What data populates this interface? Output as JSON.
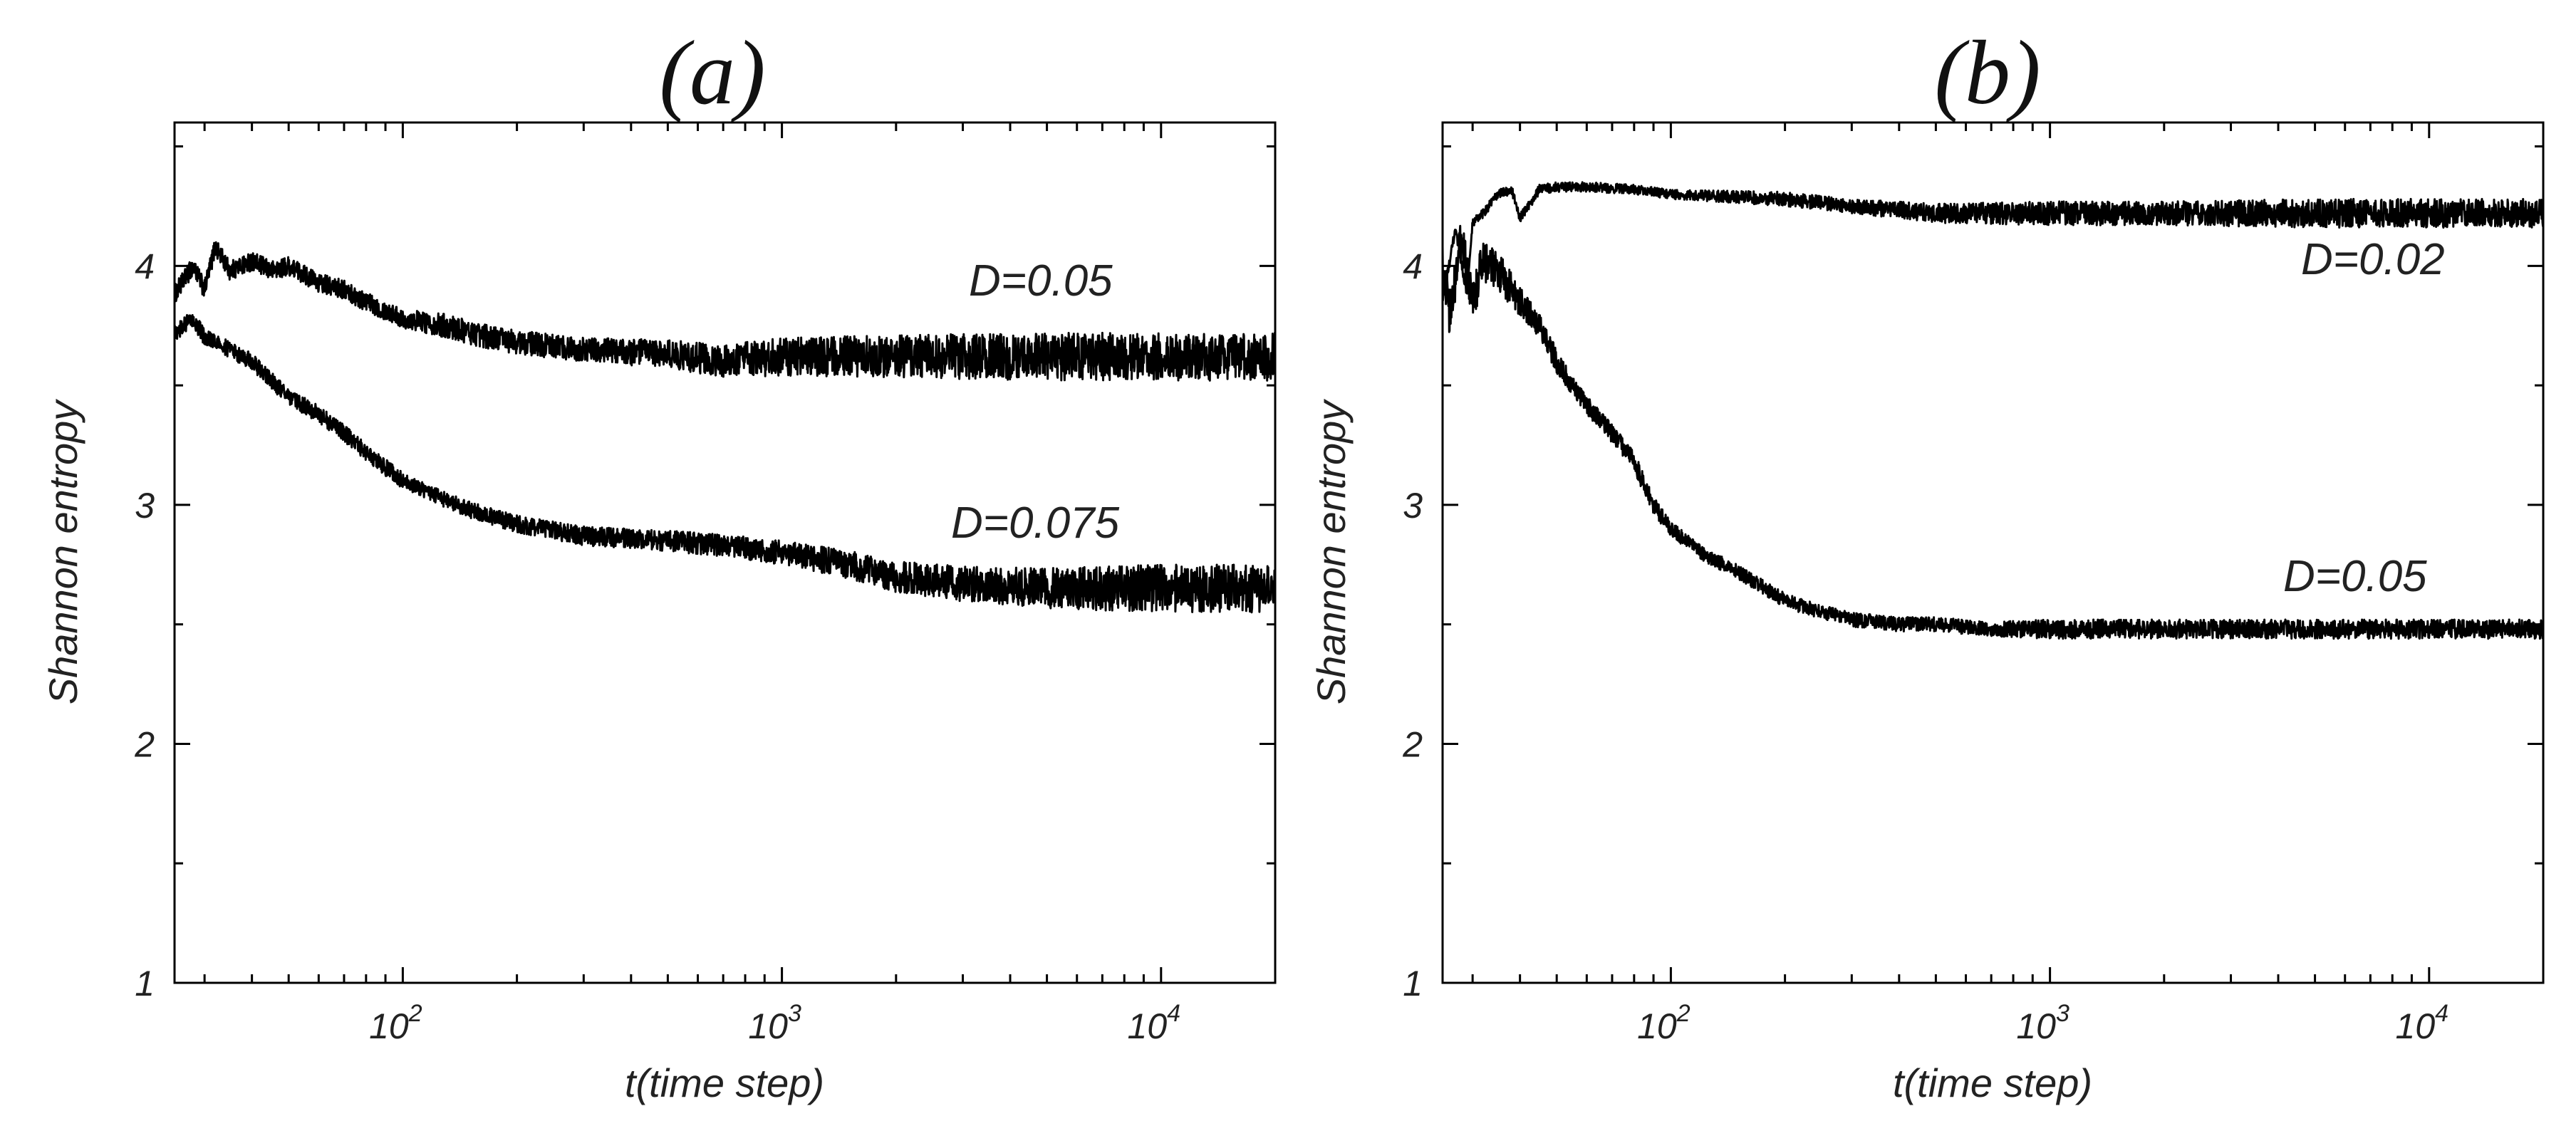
{
  "chart_data": [
    {
      "type": "line",
      "title": "(a)",
      "xlabel": "t(time step)",
      "ylabel": "Shannon entropy",
      "xscale": "log",
      "xlim": [
        25,
        20000
      ],
      "ylim": [
        1,
        4.6
      ],
      "grid": false,
      "xticks": [
        {
          "base": "10",
          "exp": "2",
          "value": 100
        },
        {
          "base": "10",
          "exp": "3",
          "value": 1000
        },
        {
          "base": "10",
          "exp": "4",
          "value": 10000
        }
      ],
      "yticks": [
        {
          "label": "1",
          "value": 1
        },
        {
          "label": "2",
          "value": 2
        },
        {
          "label": "3",
          "value": 3
        },
        {
          "label": "4",
          "value": 4
        }
      ],
      "series": [
        {
          "name": "D=0.05",
          "x": [
            25,
            28,
            30,
            32,
            35,
            40,
            45,
            50,
            60,
            70,
            80,
            100,
            130,
            150,
            200,
            300,
            500,
            700,
            1000,
            2000,
            5000,
            10000,
            20000
          ],
          "y": [
            3.88,
            4.0,
            3.9,
            4.08,
            3.98,
            4.02,
            3.98,
            4.0,
            3.93,
            3.9,
            3.85,
            3.78,
            3.75,
            3.72,
            3.68,
            3.65,
            3.63,
            3.6,
            3.62,
            3.62,
            3.62,
            3.62,
            3.62
          ],
          "noise": [
            0.04,
            0.04,
            0.04,
            0.04,
            0.04,
            0.04,
            0.04,
            0.04,
            0.04,
            0.04,
            0.04,
            0.04,
            0.05,
            0.05,
            0.05,
            0.05,
            0.06,
            0.07,
            0.08,
            0.09,
            0.1,
            0.1,
            0.1
          ]
        },
        {
          "name": "D=0.075",
          "x": [
            25,
            28,
            30,
            35,
            40,
            45,
            50,
            60,
            70,
            80,
            100,
            130,
            150,
            200,
            300,
            500,
            700,
            1000,
            1500,
            2000,
            3000,
            5000,
            10000,
            20000
          ],
          "y": [
            3.72,
            3.78,
            3.7,
            3.65,
            3.6,
            3.52,
            3.45,
            3.38,
            3.3,
            3.22,
            3.1,
            3.02,
            2.98,
            2.92,
            2.87,
            2.85,
            2.83,
            2.8,
            2.75,
            2.7,
            2.67,
            2.65,
            2.65,
            2.65
          ]
        }
      ],
      "annotations": [
        "D=0.05",
        "D=0.075"
      ]
    },
    {
      "type": "line",
      "title": "(b)",
      "xlabel": "t(time step)",
      "ylabel": "Shannon entropy",
      "xscale": "log",
      "xlim": [
        25,
        20000
      ],
      "ylim": [
        1,
        4.6
      ],
      "grid": false,
      "xticks": [
        {
          "base": "10",
          "exp": "2",
          "value": 100
        },
        {
          "base": "10",
          "exp": "3",
          "value": 1000
        },
        {
          "base": "10",
          "exp": "4",
          "value": 10000
        }
      ],
      "yticks": [
        {
          "label": "1",
          "value": 1
        },
        {
          "label": "2",
          "value": 2
        },
        {
          "label": "3",
          "value": 3
        },
        {
          "label": "4",
          "value": 4
        }
      ],
      "series": [
        {
          "name": "D=0.02",
          "x": [
            25,
            27,
            29,
            30,
            32,
            35,
            38,
            40,
            45,
            50,
            60,
            80,
            100,
            200,
            300,
            500,
            1000,
            2000,
            5000,
            10000,
            20000
          ],
          "y": [
            3.85,
            4.15,
            3.88,
            4.18,
            4.22,
            4.3,
            4.32,
            4.2,
            4.32,
            4.33,
            4.33,
            4.32,
            4.3,
            4.28,
            4.25,
            4.22,
            4.22,
            4.22,
            4.22,
            4.22,
            4.22
          ],
          "noise": [
            0.02,
            0.02,
            0.02,
            0.02,
            0.02,
            0.02,
            0.02,
            0.02,
            0.02,
            0.02,
            0.02,
            0.02,
            0.02,
            0.03,
            0.03,
            0.04,
            0.05,
            0.05,
            0.06,
            0.06,
            0.06
          ]
        },
        {
          "name": "D=0.05",
          "x": [
            25,
            26,
            28,
            30,
            32,
            35,
            38,
            40,
            45,
            50,
            55,
            60,
            70,
            80,
            90,
            100,
            120,
            150,
            200,
            250,
            300,
            400,
            500,
            700,
            1000,
            2000,
            5000,
            10000,
            20000
          ],
          "y": [
            4.0,
            3.8,
            4.1,
            3.85,
            4.02,
            3.98,
            3.9,
            3.85,
            3.75,
            3.6,
            3.5,
            3.42,
            3.3,
            3.18,
            3.0,
            2.9,
            2.8,
            2.72,
            2.6,
            2.55,
            2.52,
            2.5,
            2.5,
            2.48,
            2.48,
            2.48,
            2.48,
            2.48,
            2.48
          ],
          "noise": [
            0.1,
            0.1,
            0.1,
            0.1,
            0.09,
            0.08,
            0.07,
            0.06,
            0.05,
            0.05,
            0.04,
            0.04,
            0.04,
            0.04,
            0.04,
            0.03,
            0.03,
            0.03,
            0.03,
            0.03,
            0.03,
            0.03,
            0.03,
            0.03,
            0.04,
            0.04,
            0.04,
            0.04,
            0.04
          ]
        }
      ],
      "annotations": [
        "D=0.02",
        "D=0.05"
      ]
    }
  ]
}
